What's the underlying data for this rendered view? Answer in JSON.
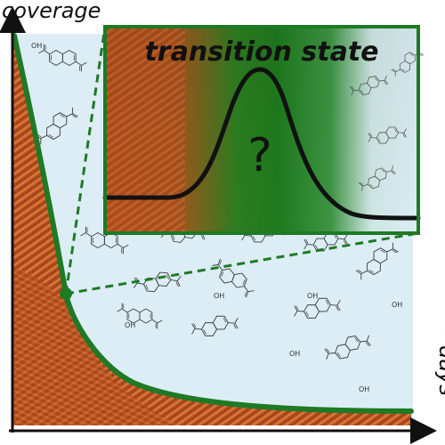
{
  "axes": {
    "y_label": "coverage",
    "x_label": "~days"
  },
  "inset": {
    "title": "transition state",
    "question_mark": "?"
  },
  "colors": {
    "solution_background": "#dcedf5",
    "surface_dark": "#a8451c",
    "surface_light": "#d46a2e",
    "curve_green": "#1e7a25",
    "inset_green": "#1f7a1d",
    "peak_curve": "#111111"
  },
  "molecule": {
    "name": "naphthalene-2,6-dicarboxylic acid",
    "group_label": "OH"
  },
  "icons": [
    "naphthalene-dicarboxylic-acid-icon",
    "axis-arrow-icon"
  ]
}
